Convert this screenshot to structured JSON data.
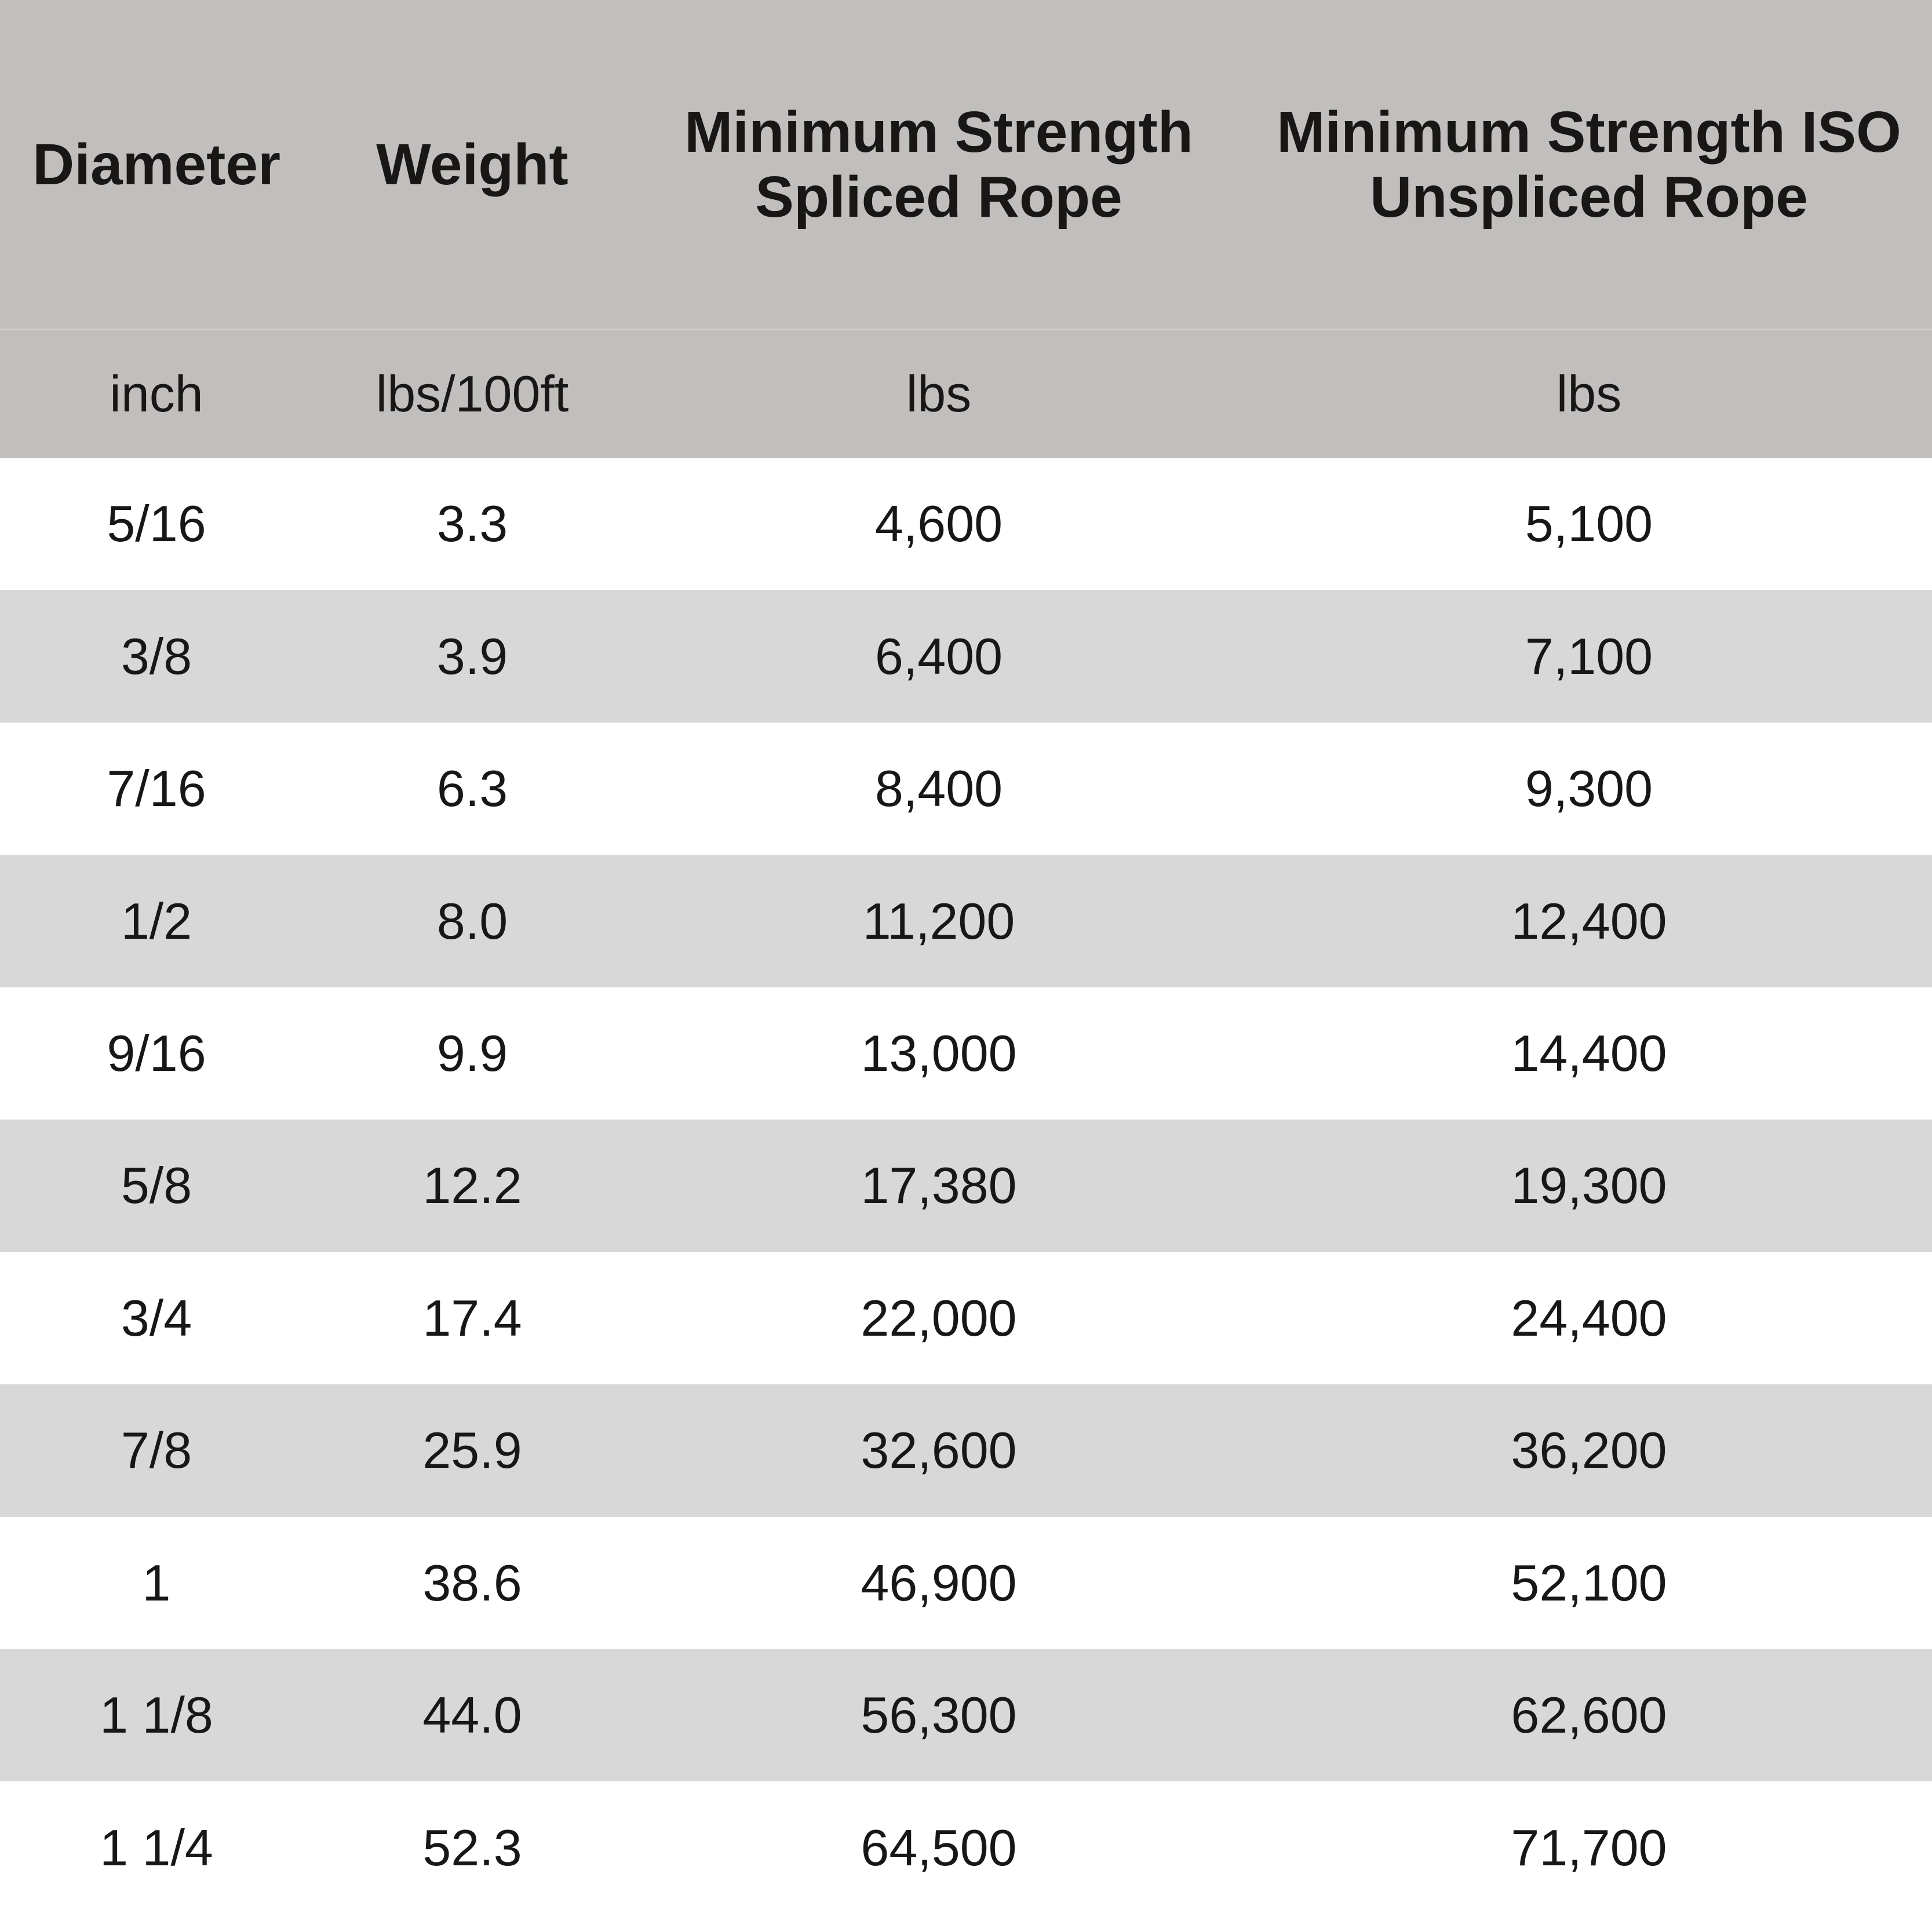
{
  "chart_data": {
    "type": "table",
    "title": "",
    "columns": [
      {
        "header": "Diameter",
        "unit": "inch"
      },
      {
        "header": "Weight",
        "unit": "lbs/100ft"
      },
      {
        "header": "Minimum Strength\nSpliced Rope",
        "unit": "lbs"
      },
      {
        "header": "Minimum Strength ISO\nUnspliced Rope",
        "unit": "lbs"
      }
    ],
    "rows": [
      [
        "5/16",
        "3.3",
        "4,600",
        "5,100"
      ],
      [
        "3/8",
        "3.9",
        "6,400",
        "7,100"
      ],
      [
        "7/16",
        "6.3",
        "8,400",
        "9,300"
      ],
      [
        "1/2",
        "8.0",
        "11,200",
        "12,400"
      ],
      [
        "9/16",
        "9.9",
        "13,000",
        "14,400"
      ],
      [
        "5/8",
        "12.2",
        "17,380",
        "19,300"
      ],
      [
        "3/4",
        "17.4",
        "22,000",
        "24,400"
      ],
      [
        "7/8",
        "25.9",
        "32,600",
        "36,200"
      ],
      [
        "1",
        "38.6",
        "46,900",
        "52,100"
      ],
      [
        "1 1/8",
        "44.0",
        "56,300",
        "62,600"
      ],
      [
        "1 1/4",
        "52.3",
        "64,500",
        "71,700"
      ]
    ],
    "layout": {
      "stripe_style": "alternating rows, even data rows shaded",
      "alignment": "center"
    },
    "colors": {
      "header_bg": "#c1bfbe",
      "units_bg": "#c1bfbe",
      "row_alt_bg": "#d9d8d8",
      "row_bg": "#ffffff",
      "text": "#181716",
      "header_divider": "#d2d0cf"
    }
  }
}
